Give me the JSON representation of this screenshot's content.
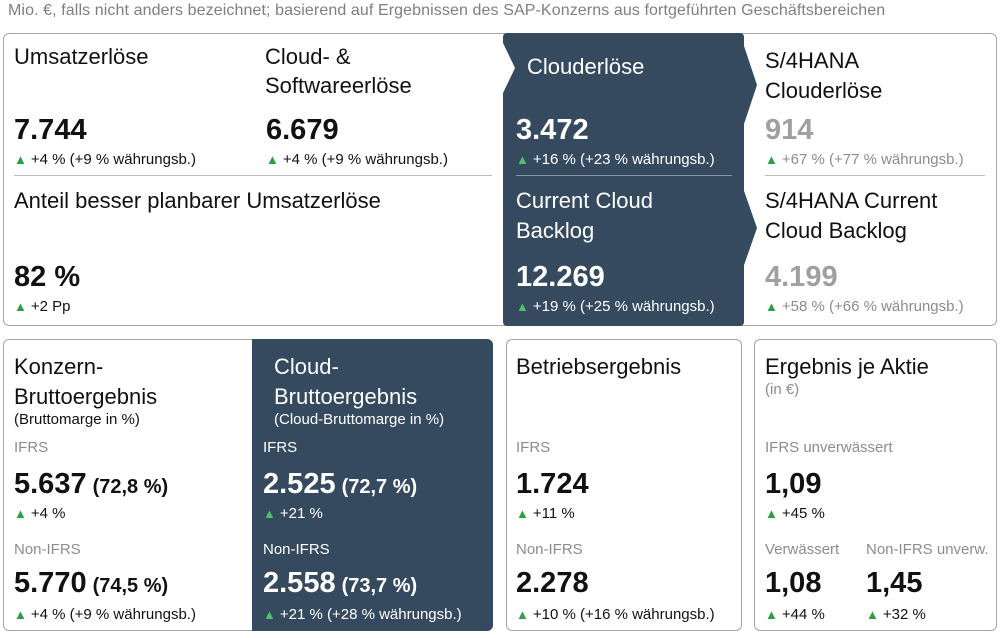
{
  "header": "Mio. €, falls nicht anders bezeichnet; basierend auf Ergebnissen des SAP-Konzerns aus fortgeführten Geschäftsbereichen",
  "top": {
    "umsatz": {
      "title": "Umsatzerlöse",
      "value": "7.744",
      "change": "+4 % (+9 % währungsb.)"
    },
    "cloud_software": {
      "title_line1": "Cloud- &",
      "title_line2": "Softwareerlöse",
      "value": "6.679",
      "change": "+4 % (+9 % währungsb.)"
    },
    "anteil": {
      "title": "Anteil besser planbarer Umsatzerlöse",
      "value": "82 %",
      "change": "+2 Pp"
    },
    "clouderloese": {
      "title": "Clouderlöse",
      "value": "3.472",
      "change": "+16 % (+23 % währungsb.)"
    },
    "ccb": {
      "title_line1": "Current Cloud",
      "title_line2": "Backlog",
      "value": "12.269",
      "change": "+19 % (+25 % währungsb.)"
    },
    "s4_cloud": {
      "title_line1": "S/4HANA",
      "title_line2": "Clouderlöse",
      "value": "914",
      "change": "+67 % (+77 % währungsb.)"
    },
    "s4_ccb": {
      "title_line1": "S/4HANA Current",
      "title_line2": "Cloud Backlog",
      "value": "4.199",
      "change": "+58 % (+66 % währungsb.)"
    }
  },
  "konzern": {
    "title_line1": "Konzern-",
    "title_line2": "Bruttoergebnis",
    "subtitle": "(Bruttomarge in %)",
    "ifrs_label": "IFRS",
    "ifrs_value": "5.637",
    "ifrs_pct": "(72,8 %)",
    "ifrs_change": "+4 %",
    "nonifrs_label": "Non-IFRS",
    "nonifrs_value": "5.770",
    "nonifrs_pct": "(74,5 %)",
    "nonifrs_change": "+4 % (+9 % währungsb.)"
  },
  "cloud_brutto": {
    "title_line1": "Cloud-",
    "title_line2": "Bruttoergebnis",
    "subtitle": "(Cloud-Bruttomarge in %)",
    "ifrs_label": "IFRS",
    "ifrs_value": "2.525",
    "ifrs_pct": "(72,7 %)",
    "ifrs_change": "+21 %",
    "nonifrs_label": "Non-IFRS",
    "nonifrs_value": "2.558",
    "nonifrs_pct": "(73,7 %)",
    "nonifrs_change": "+21 % (+28 % währungsb.)"
  },
  "betrieb": {
    "title": "Betriebsergebnis",
    "ifrs_label": "IFRS",
    "ifrs_value": "1.724",
    "ifrs_change": "+11 %",
    "nonifrs_label": "Non-IFRS",
    "nonifrs_value": "2.278",
    "nonifrs_change": "+10 % (+16 % währungsb.)"
  },
  "eps": {
    "title": "Ergebnis je Aktie",
    "subtitle": "(in €)",
    "ifrs_label": "IFRS unverwässert",
    "ifrs_value": "1,09",
    "ifrs_change": "+45 %",
    "diluted_label": "Verwässert",
    "diluted_value": "1,08",
    "diluted_change": "+44 %",
    "nonifrs_label": "Non-IFRS unverw.",
    "nonifrs_value": "1,45",
    "nonifrs_change": "+32 %"
  },
  "icons": {
    "up": "▲",
    "arrow": "chevron-right-icon"
  },
  "colors": {
    "dark_panel": "#354a5f",
    "up_arrow": "#2e9e44",
    "border": "#a6a6a6"
  }
}
